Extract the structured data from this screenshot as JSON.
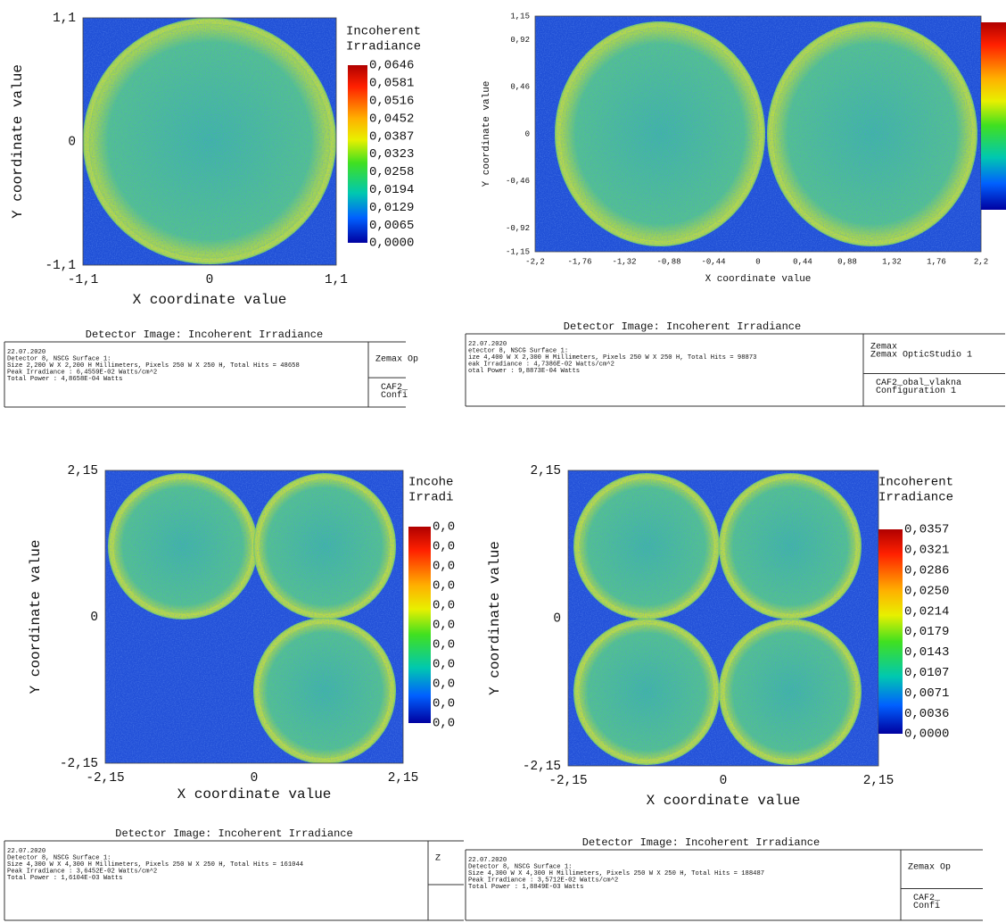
{
  "panels": [
    {
      "title_lines": [
        "Incoherent",
        "Irradiance"
      ],
      "y_axis_label": "Y coordinate value",
      "x_axis_label": "X coordinate value",
      "y_ticks": [
        "1,1",
        "0",
        "-1,1"
      ],
      "x_ticks": [
        "-1,1",
        "0",
        "1,1"
      ],
      "colorbar_labels": [
        "0,0646",
        "0,0581",
        "0,0516",
        "0,0452",
        "0,0387",
        "0,0323",
        "0,0258",
        "0,0194",
        "0,0129",
        "0,0065",
        "0,0000"
      ],
      "info": {
        "header": "Detector Image: Incoherent Irradiance",
        "lines": [
          "22.07.2020",
          "Detector 8, NSCG Surface 1:",
          "Size 2,200 W X 2,200 H Millimeters, Pixels 250 W X 250 H, Total Hits = 48658",
          "Peak Irradiance : 6,4559E-02 Watts/cm^2",
          "Total Power     : 4,8658E-04 Watts"
        ],
        "right_top": [
          "Zemax Op"
        ],
        "right_bottom": [
          "CAF2_",
          "Confi"
        ]
      }
    },
    {
      "title_lines": [],
      "y_axis_label": "Y coordinate value",
      "x_axis_label": "X coordinate value",
      "y_ticks": [
        "1,15",
        "0,92",
        "0,46",
        "0",
        "-0,46",
        "-0,92",
        "-1,15"
      ],
      "x_ticks": [
        "-2,2",
        "-1,76",
        "-1,32",
        "-0,88",
        "-0,44",
        "0",
        "0,44",
        "0,88",
        "1,32",
        "1,76",
        "2,2"
      ],
      "colorbar_labels": [],
      "info": {
        "header": "Detector Image: Incoherent Irradiance",
        "lines": [
          "22.07.2020",
          "etector 8, NSCG Surface 1:",
          "ize 4,400 W X 2,300 H Millimeters, Pixels 250 W X 250 H, Total Hits = 98873",
          "eak Irradiance : 4,7386E-02 Watts/cm^2",
          "otal Power     : 9,8873E-04 Watts"
        ],
        "right_top": [
          "Zemax",
          "Zemax OpticStudio 1"
        ],
        "right_bottom": [
          "CAF2_obal_vlakna",
          "Configuration 1"
        ]
      }
    },
    {
      "title_lines": [
        "Incohe",
        "Irradi"
      ],
      "y_axis_label": "Y coordinate value",
      "x_axis_label": "X coordinate value",
      "y_ticks": [
        "2,15",
        "0",
        "-2,15"
      ],
      "x_ticks": [
        "-2,15",
        "0",
        "2,15"
      ],
      "colorbar_labels": [
        "0,0",
        "0,0",
        "0,0",
        "0,0",
        "0,0",
        "0,0",
        "0,0",
        "0,0",
        "0,0",
        "0,0",
        "0,0"
      ],
      "info": {
        "header": "Detector Image: Incoherent Irradiance",
        "lines": [
          "22.07.2020",
          "Detector 8, NSCG Surface 1:",
          "Size 4,300 W X 4,300 H Millimeters, Pixels 250 W X 250 H, Total Hits = 161044",
          "Peak Irradiance : 3,6452E-02 Watts/cm^2",
          "Total Power     : 1,6104E-03 Watts"
        ],
        "right_top": [
          "Z"
        ],
        "right_bottom": []
      }
    },
    {
      "title_lines": [
        "Incoherent",
        "Irradiance"
      ],
      "y_axis_label": "Y coordinate value",
      "x_axis_label": "X coordinate value",
      "y_ticks": [
        "2,15",
        "0",
        "-2,15"
      ],
      "x_ticks": [
        "-2,15",
        "0",
        "2,15"
      ],
      "colorbar_labels": [
        "0,0357",
        "0,0321",
        "0,0286",
        "0,0250",
        "0,0214",
        "0,0179",
        "0,0143",
        "0,0107",
        "0,0071",
        "0,0036",
        "0,0000"
      ],
      "info": {
        "header": "Detector Image: Incoherent Irradiance",
        "lines": [
          "22.07.2020",
          "Detector 8, NSCG Surface 1:",
          "Size 4,300 W X 4,300 H Millimeters, Pixels 250 W X 250 H, Total Hits = 188487",
          "Peak Irradiance : 3,5712E-02 Watts/cm^2",
          "Total Power     : 1,8849E-03 Watts"
        ],
        "right_top": [
          "Zemax Op"
        ],
        "right_bottom": [
          "CAF2_",
          "Confi"
        ]
      }
    }
  ]
}
